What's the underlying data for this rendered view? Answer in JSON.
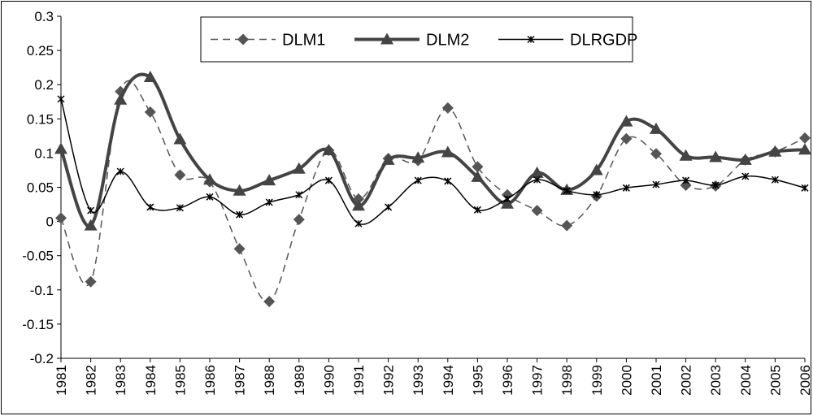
{
  "chart_data": {
    "type": "line",
    "categories": [
      "1981",
      "1982",
      "1983",
      "1984",
      "1985",
      "1986",
      "1987",
      "1988",
      "1989",
      "1990",
      "1991",
      "1992",
      "1993",
      "1994",
      "1995",
      "1996",
      "1997",
      "1998",
      "1999",
      "2000",
      "2001",
      "2002",
      "2003",
      "2004",
      "2005",
      "2006"
    ],
    "series": [
      {
        "name": "DLM1",
        "color": "#555555",
        "line_style": "dashed",
        "marker": "diamond",
        "values": [
          0.005,
          -0.088,
          0.19,
          0.16,
          0.068,
          0.058,
          -0.04,
          -0.117,
          0.003,
          0.104,
          0.033,
          0.092,
          0.089,
          0.166,
          0.08,
          0.039,
          0.016,
          -0.006,
          0.037,
          0.121,
          0.099,
          0.053,
          0.052,
          0.09,
          0.102,
          0.122
        ]
      },
      {
        "name": "DLM2",
        "color": "#444444",
        "line_style": "thick",
        "marker": "triangle",
        "values": [
          0.106,
          -0.006,
          0.178,
          0.211,
          0.12,
          0.061,
          0.045,
          0.06,
          0.077,
          0.104,
          0.023,
          0.09,
          0.093,
          0.101,
          0.065,
          0.026,
          0.071,
          0.046,
          0.075,
          0.146,
          0.135,
          0.096,
          0.094,
          0.09,
          0.102,
          0.105
        ]
      },
      {
        "name": "DLRGDP",
        "color": "#000000",
        "line_style": "solid",
        "marker": "star",
        "values": [
          0.179,
          0.016,
          0.073,
          0.021,
          0.02,
          0.036,
          0.01,
          0.028,
          0.039,
          0.06,
          -0.003,
          0.021,
          0.06,
          0.059,
          0.017,
          0.033,
          0.061,
          0.045,
          0.039,
          0.049,
          0.054,
          0.06,
          0.053,
          0.066,
          0.061,
          0.049
        ]
      }
    ],
    "ylim": [
      -0.2,
      0.3
    ],
    "yticks": [
      -0.2,
      -0.15,
      -0.1,
      -0.05,
      0,
      0.05,
      0.1,
      0.15,
      0.2,
      0.25,
      0.3
    ],
    "smooth": true,
    "legend": "upper center"
  }
}
